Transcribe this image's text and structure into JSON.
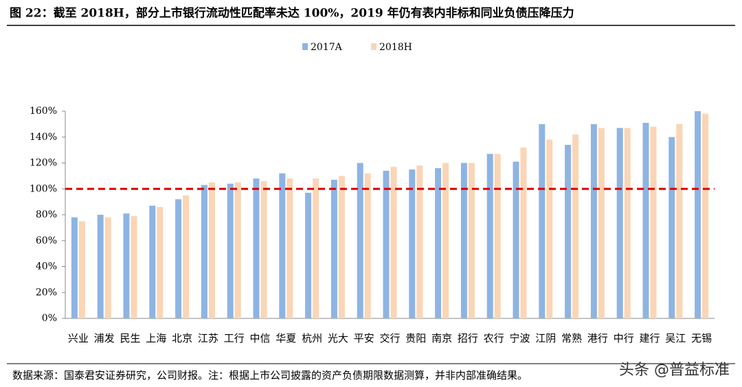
{
  "chart_data": {
    "type": "bar",
    "title": "图 22：截至 2018H，部分上市银行流动性匹配率未达 100%，2019 年仍有表内非标和同业负债压降压力",
    "categories": [
      "兴业",
      "浦发",
      "民生",
      "上海",
      "北京",
      "江苏",
      "工行",
      "中信",
      "华夏",
      "杭州",
      "光大",
      "平安",
      "交行",
      "贵阳",
      "南京",
      "招行",
      "农行",
      "宁波",
      "江阴",
      "常熟",
      "港行",
      "中行",
      "建行",
      "吴江",
      "无锡"
    ],
    "series": [
      {
        "name": "2017A",
        "color": "#8eb4e3",
        "values": [
          78,
          80,
          81,
          87,
          92,
          103,
          104,
          108,
          112,
          97,
          107,
          120,
          114,
          115,
          116,
          120,
          127,
          121,
          150,
          134,
          150,
          147,
          151,
          140,
          160
        ]
      },
      {
        "name": "2018H",
        "color": "#fbd5b5",
        "values": [
          75,
          78,
          79,
          86,
          95,
          105,
          105,
          106,
          108,
          108,
          110,
          112,
          117,
          118,
          120,
          120,
          127,
          132,
          138,
          142,
          147,
          147,
          148,
          150,
          158
        ]
      }
    ],
    "ylim": [
      0,
      160
    ],
    "yticks": [
      {
        "value": 0,
        "label": "0%"
      },
      {
        "value": 20,
        "label": "20%"
      },
      {
        "value": 40,
        "label": "40%"
      },
      {
        "value": 60,
        "label": "60%"
      },
      {
        "value": 80,
        "label": "80%"
      },
      {
        "value": 100,
        "label": "100%"
      },
      {
        "value": 120,
        "label": "120%"
      },
      {
        "value": 140,
        "label": "140%"
      },
      {
        "value": 160,
        "label": "160%"
      }
    ],
    "reference_line": {
      "value": 100,
      "color": "#e00000"
    },
    "source": "数据来源：国泰君安证券研究，公司财报。注：根据上市公司披露的资产负债期限数据测算，并非内部准确结果。",
    "watermark": "头条 @普益标准"
  }
}
